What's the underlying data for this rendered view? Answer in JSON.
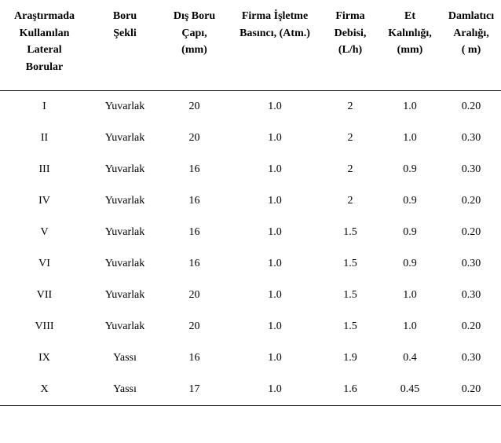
{
  "headers": {
    "c0": [
      "Araştırmada",
      "Kullanılan",
      "Lateral",
      "Borular"
    ],
    "c1": [
      "Boru",
      "Şekli"
    ],
    "c2": [
      "Dış Boru",
      "Çapı,",
      "(mm)"
    ],
    "c3": [
      "Firma İşletme",
      "Basıncı, (Atm.)"
    ],
    "c4": [
      "Firma",
      "Debisi,",
      "(L/h)"
    ],
    "c5": [
      "Et",
      "Kalınlığı,",
      "(mm)"
    ],
    "c6": [
      "Damlatıcı",
      "Aralığı,",
      "( m)"
    ]
  },
  "rows": [
    {
      "id": "I",
      "shape": "Yuvarlak",
      "dia": "20",
      "press": "1.0",
      "flow": "2",
      "wall": "1.0",
      "spacing": "0.20"
    },
    {
      "id": "II",
      "shape": "Yuvarlak",
      "dia": "20",
      "press": "1.0",
      "flow": "2",
      "wall": "1.0",
      "spacing": "0.30"
    },
    {
      "id": "III",
      "shape": "Yuvarlak",
      "dia": "16",
      "press": "1.0",
      "flow": "2",
      "wall": "0.9",
      "spacing": "0.30"
    },
    {
      "id": "IV",
      "shape": "Yuvarlak",
      "dia": "16",
      "press": "1.0",
      "flow": "2",
      "wall": "0.9",
      "spacing": "0.20"
    },
    {
      "id": "V",
      "shape": "Yuvarlak",
      "dia": "16",
      "press": "1.0",
      "flow": "1.5",
      "wall": "0.9",
      "spacing": "0.20"
    },
    {
      "id": "VI",
      "shape": "Yuvarlak",
      "dia": "16",
      "press": "1.0",
      "flow": "1.5",
      "wall": "0.9",
      "spacing": "0.30"
    },
    {
      "id": "VII",
      "shape": "Yuvarlak",
      "dia": "20",
      "press": "1.0",
      "flow": "1.5",
      "wall": "1.0",
      "spacing": "0.30"
    },
    {
      "id": "VIII",
      "shape": "Yuvarlak",
      "dia": "20",
      "press": "1.0",
      "flow": "1.5",
      "wall": "1.0",
      "spacing": "0.20"
    },
    {
      "id": "IX",
      "shape": "Yassı",
      "dia": "16",
      "press": "1.0",
      "flow": "1.9",
      "wall": "0.4",
      "spacing": "0.30"
    },
    {
      "id": "X",
      "shape": "Yassı",
      "dia": "17",
      "press": "1.0",
      "flow": "1.6",
      "wall": "0.45",
      "spacing": "0.20"
    }
  ]
}
